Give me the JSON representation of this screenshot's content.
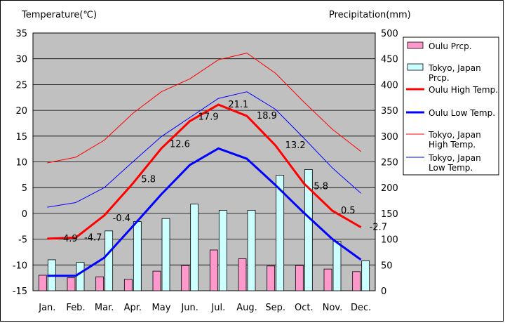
{
  "chart_data": {
    "type": "bar+line",
    "left_axis_title": "Temperature(℃)",
    "right_axis_title": "Precipitation(mm)",
    "categories": [
      "Jan.",
      "Feb.",
      "Mar.",
      "Apr.",
      "May",
      "Jun.",
      "Jul.",
      "Aug.",
      "Sep.",
      "Oct.",
      "Nov.",
      "Dec."
    ],
    "ylim_left": [
      -15,
      35
    ],
    "yticks_left": [
      35,
      30,
      25,
      20,
      15,
      10,
      5,
      0,
      -5,
      -10,
      -15
    ],
    "ylim_right": [
      0,
      500
    ],
    "yticks_right": [
      500,
      450,
      400,
      350,
      300,
      250,
      200,
      150,
      100,
      50,
      0
    ],
    "grid": true,
    "legend_position": "right",
    "bars": [
      {
        "name": "Oulu Prcp.",
        "color": "#ff99cc",
        "values": [
          30,
          25,
          27,
          22,
          38,
          49,
          79,
          62,
          48,
          49,
          42,
          37
        ]
      },
      {
        "name": "Tokyo, Japan Prcp.",
        "color": "#ccffff",
        "values": [
          60,
          55,
          116,
          134,
          140,
          168,
          156,
          156,
          224,
          235,
          96,
          58
        ]
      }
    ],
    "lines": [
      {
        "name": "Oulu High Temp.",
        "color": "#ff0000",
        "width": 3,
        "values": [
          -4.9,
          -4.7,
          -0.4,
          5.8,
          12.6,
          17.9,
          21.1,
          18.9,
          13.2,
          5.8,
          0.5,
          -2.7
        ],
        "labels": [
          "-4.9",
          "-4.7",
          "-0.4",
          "5.8",
          "12.6",
          "17.9",
          "21.1",
          "18.9",
          "13.2",
          "5.8",
          "0.5",
          "-2.7"
        ]
      },
      {
        "name": "Oulu Low Temp.",
        "color": "#0000ff",
        "width": 3,
        "values": [
          -12.1,
          -12.1,
          -8.6,
          -2.5,
          3.7,
          9.4,
          12.6,
          10.6,
          5.5,
          0.1,
          -5.0,
          -9.0
        ]
      },
      {
        "name": "Tokyo, Japan High Temp.",
        "color": "#ff0000",
        "width": 1,
        "values": [
          9.8,
          10.9,
          14.2,
          19.4,
          23.6,
          26.1,
          29.8,
          31.1,
          27.2,
          21.6,
          16.3,
          12.0
        ]
      },
      {
        "name": "Tokyo, Japan Low Temp.",
        "color": "#0000ff",
        "width": 1,
        "values": [
          1.2,
          2.1,
          5.0,
          10.0,
          14.9,
          18.6,
          22.3,
          23.6,
          20.2,
          14.6,
          8.8,
          3.9
        ]
      }
    ]
  },
  "legend": [
    {
      "label": "Oulu Prcp.",
      "kind": "bar",
      "color": "#ff99cc"
    },
    {
      "label": "Tokyo, Japan Prcp.",
      "kind": "bar",
      "color": "#ccffff"
    },
    {
      "label": "Oulu High Temp.",
      "kind": "line",
      "color": "#ff0000",
      "width": 3
    },
    {
      "label": "Oulu Low Temp.",
      "kind": "line",
      "color": "#0000ff",
      "width": 3
    },
    {
      "label": "Tokyo, Japan High Temp.",
      "kind": "line",
      "color": "#ff0000",
      "width": 1
    },
    {
      "label": "Tokyo, Japan Low Temp.",
      "kind": "line",
      "color": "#0000ff",
      "width": 1
    }
  ],
  "colors": {
    "plot_background": "#c0c0c0",
    "grid": "#000000"
  }
}
